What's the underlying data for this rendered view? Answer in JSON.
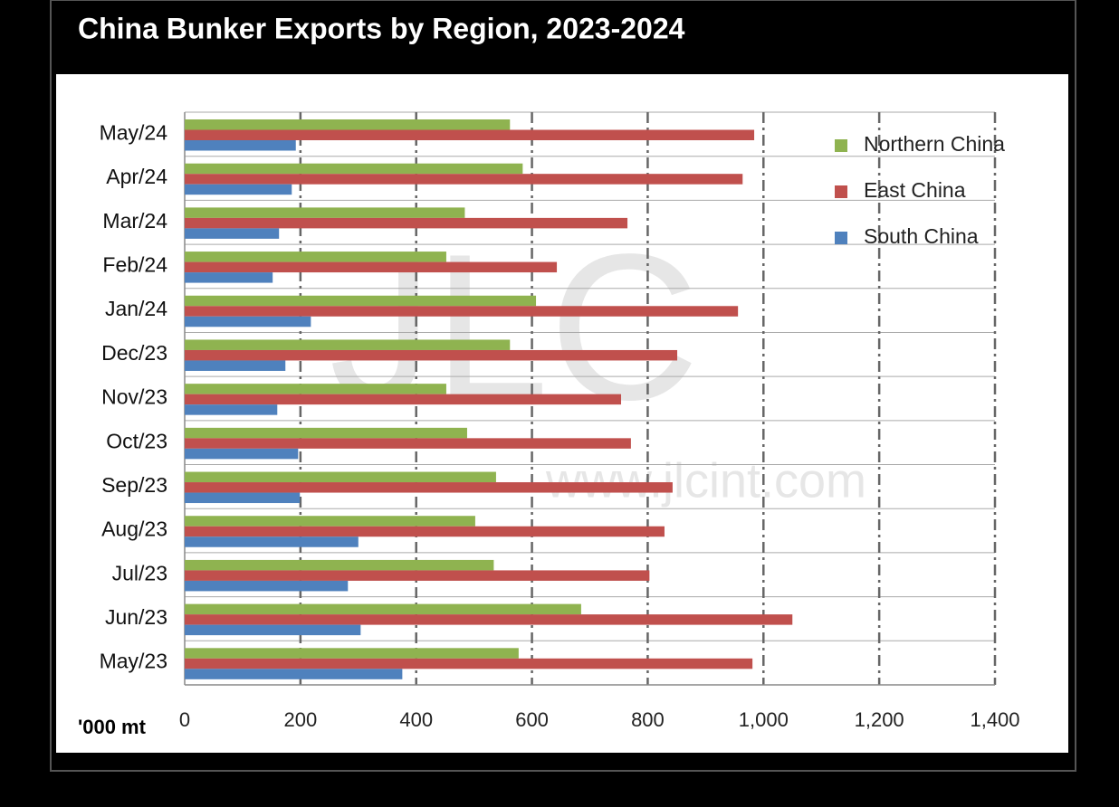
{
  "chart_data": {
    "type": "bar",
    "orientation": "horizontal",
    "title": "China Bunker Exports by Region, 2023-2024",
    "x_axis_label": "'000 mt",
    "watermark": [
      "JLC",
      "www.jlcint.com"
    ],
    "categories": [
      "May/24",
      "Apr/24",
      "Mar/24",
      "Feb/24",
      "Jan/24",
      "Dec/23",
      "Nov/23",
      "Oct/23",
      "Sep/23",
      "Aug/23",
      "Jul/23",
      "Jun/23",
      "May/23"
    ],
    "series": [
      {
        "name": "Northern China",
        "color": "#8fb350",
        "values": [
          562,
          584,
          484,
          452,
          607,
          562,
          452,
          488,
          538,
          502,
          534,
          685,
          577
        ]
      },
      {
        "name": "East China",
        "color": "#c0504d",
        "values": [
          984,
          964,
          765,
          643,
          956,
          851,
          754,
          771,
          843,
          829,
          803,
          1050,
          981
        ]
      },
      {
        "name": "South China",
        "color": "#4f81bd",
        "values": [
          192,
          185,
          163,
          152,
          218,
          174,
          160,
          196,
          199,
          300,
          282,
          304,
          376
        ]
      }
    ],
    "xlim": [
      0,
      1400
    ],
    "xticks": [
      0,
      200,
      400,
      600,
      800,
      {
        "value": 1000,
        "label": "1,000"
      },
      {
        "value": 1200,
        "label": "1,200"
      },
      {
        "value": 1400,
        "label": "1,400"
      }
    ],
    "grid": true,
    "legend": "top-right"
  }
}
